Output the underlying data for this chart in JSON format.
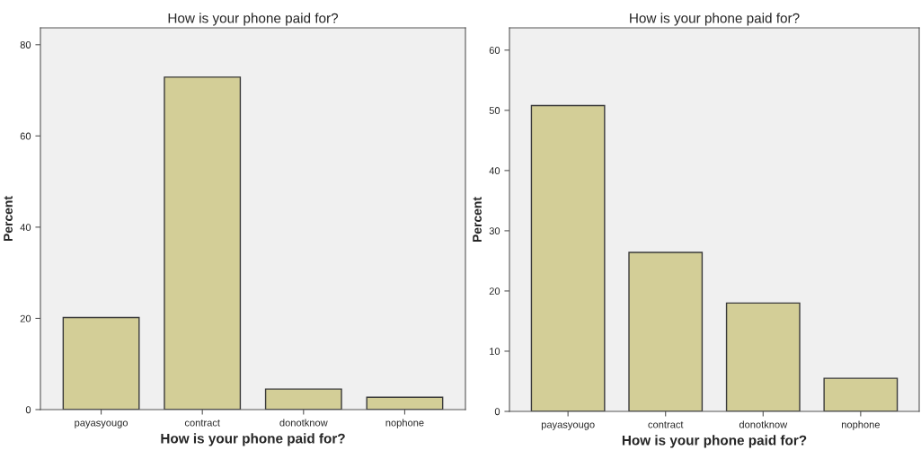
{
  "chart_data": [
    {
      "type": "bar",
      "title": "How is your phone paid for?",
      "xlabel": "How is your phone paid for?",
      "ylabel": "Percent",
      "categories": [
        "payasyougo",
        "contract",
        "donotknow",
        "nophone"
      ],
      "values": [
        20.2,
        72.9,
        4.5,
        2.7
      ],
      "color": "#d3ce97",
      "ylim": [
        0,
        83.7
      ],
      "yticks": [
        0,
        20,
        40,
        60,
        80
      ],
      "grid": false
    },
    {
      "type": "bar",
      "title": "How is your phone paid for?",
      "xlabel": "How is your phone paid for?",
      "ylabel": "Percent",
      "categories": [
        "payasyougo",
        "contract",
        "donotknow",
        "nophone"
      ],
      "values": [
        50.8,
        26.4,
        18.0,
        5.5
      ],
      "color": "#d3ce97",
      "ylim": [
        0,
        63.7
      ],
      "yticks": [
        0,
        10,
        20,
        30,
        40,
        50,
        60
      ],
      "grid": false
    }
  ]
}
